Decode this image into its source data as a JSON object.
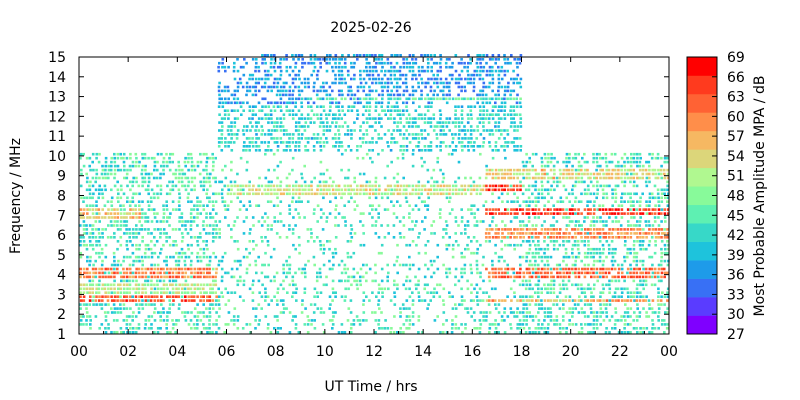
{
  "chart_data": {
    "type": "heatmap",
    "title": "2025-02-26",
    "xlabel": "UT Time / hrs",
    "ylabel": "Frequency / MHz",
    "xlim": [
      0,
      24
    ],
    "ylim": [
      1,
      15
    ],
    "x_tick_labels": [
      "00",
      "02",
      "04",
      "06",
      "08",
      "10",
      "12",
      "14",
      "16",
      "18",
      "20",
      "22",
      "00"
    ],
    "y_tick_labels": [
      "1",
      "2",
      "3",
      "4",
      "5",
      "6",
      "7",
      "8",
      "9",
      "10",
      "11",
      "12",
      "13",
      "14",
      "15"
    ],
    "grid": false,
    "colorbar": {
      "label": "Most Probable Amplitude MPA / dB",
      "range": [
        27,
        69
      ],
      "tick_labels": [
        "27",
        "30",
        "33",
        "36",
        "39",
        "42",
        "45",
        "48",
        "51",
        "54",
        "57",
        "60",
        "63",
        "66",
        "69"
      ],
      "colors": [
        "#7f00ff",
        "#5a3cff",
        "#3870f5",
        "#1e9be9",
        "#1ec3dc",
        "#37d8c8",
        "#5ef0b2",
        "#88fa9a",
        "#b0f890",
        "#dcd67a",
        "#f6b862",
        "#ff8e4a",
        "#ff6234",
        "#ff3a1e",
        "#ff0000"
      ]
    },
    "coverage": [
      {
        "t_start": 0.0,
        "t_end": 5.6,
        "f_max": 10
      },
      {
        "t_start": 5.6,
        "t_end": 18.0,
        "f_max": 15
      },
      {
        "t_start": 18.0,
        "t_end": 24.0,
        "f_max": 10
      }
    ],
    "bands": [
      {
        "t_start": 0.0,
        "t_end": 5.6,
        "f_low": 2.5,
        "f_high": 2.9,
        "amp": 64
      },
      {
        "t_start": 0.0,
        "t_end": 5.6,
        "f_low": 3.8,
        "f_high": 4.3,
        "amp": 61
      },
      {
        "t_start": 0.0,
        "t_end": 5.6,
        "f_low": 3.0,
        "f_high": 3.6,
        "amp": 52
      },
      {
        "t_start": 0.0,
        "t_end": 2.5,
        "f_low": 6.8,
        "f_high": 7.4,
        "amp": 56
      },
      {
        "t_start": 6.0,
        "t_end": 16.5,
        "f_low": 8.0,
        "f_high": 8.6,
        "amp": 53
      },
      {
        "t_start": 9.0,
        "t_end": 18.0,
        "f_low": 12.6,
        "f_high": 12.9,
        "amp": 46
      },
      {
        "t_start": 16.5,
        "t_end": 18.0,
        "f_low": 8.1,
        "f_high": 8.5,
        "amp": 66
      },
      {
        "t_start": 16.5,
        "t_end": 24.0,
        "f_low": 6.9,
        "f_high": 7.4,
        "amp": 66
      },
      {
        "t_start": 16.5,
        "t_end": 24.0,
        "f_low": 5.8,
        "f_high": 6.3,
        "amp": 60
      },
      {
        "t_start": 16.5,
        "t_end": 24.0,
        "f_low": 3.8,
        "f_high": 4.4,
        "amp": 63
      },
      {
        "t_start": 16.5,
        "t_end": 24.0,
        "f_low": 2.5,
        "f_high": 2.8,
        "amp": 58
      },
      {
        "t_start": 16.5,
        "t_end": 24.0,
        "f_low": 8.8,
        "f_high": 9.2,
        "amp": 55
      }
    ]
  }
}
